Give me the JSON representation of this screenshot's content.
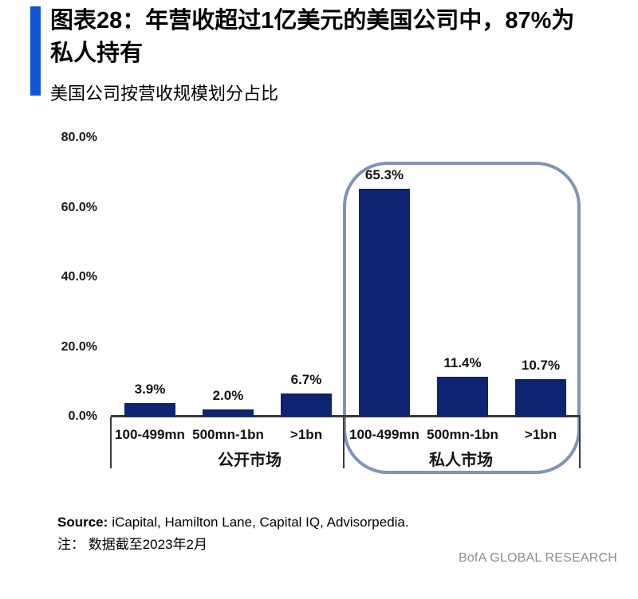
{
  "header": {
    "title_line1": "图表28：年营收超过1亿美元的美国公司中，87%为",
    "title_line2": "私人持有",
    "subtitle": "美国公司按营收规模划分占比"
  },
  "chart_data": {
    "type": "bar",
    "title": "图表28：年营收超过1亿美元的美国公司中，87%为私人持有",
    "subtitle": "美国公司按营收规模划分占比",
    "xlabel": "",
    "ylabel": "",
    "ylim": [
      0,
      80
    ],
    "grid": false,
    "legend": "none",
    "yticks": [
      {
        "label": "80.0%",
        "value": 80
      },
      {
        "label": "60.0%",
        "value": 60
      },
      {
        "label": "40.0%",
        "value": 40
      },
      {
        "label": "20.0%",
        "value": 20
      },
      {
        "label": "0.0%",
        "value": 0
      }
    ],
    "groups": [
      {
        "label": "公开市场",
        "categories": [
          "100-499mn",
          "500mn-1bn",
          ">1bn"
        ],
        "values": [
          3.9,
          2.0,
          6.7
        ],
        "value_labels": [
          "3.9%",
          "2.0%",
          "6.7%"
        ],
        "highlighted": false
      },
      {
        "label": "私人市场",
        "categories": [
          "100-499mn",
          "500mn-1bn",
          ">1bn"
        ],
        "values": [
          65.3,
          11.4,
          10.7
        ],
        "value_labels": [
          "65.3%",
          "11.4%",
          "10.7%"
        ],
        "highlighted": true
      }
    ]
  },
  "footer": {
    "source_label": "Source:",
    "source_text": "iCapital, Hamilton Lane, Capital IQ, Advisorpedia.",
    "note": "注： 数据截至2023年2月",
    "brand": "BofA GLOBAL RESEARCH"
  },
  "colors": {
    "bar": "#0d2472",
    "accent": "#1156d4",
    "highlight_outline": "#8194b7",
    "axis": "#3a3a3a",
    "brand_text": "#8c8c8c"
  }
}
